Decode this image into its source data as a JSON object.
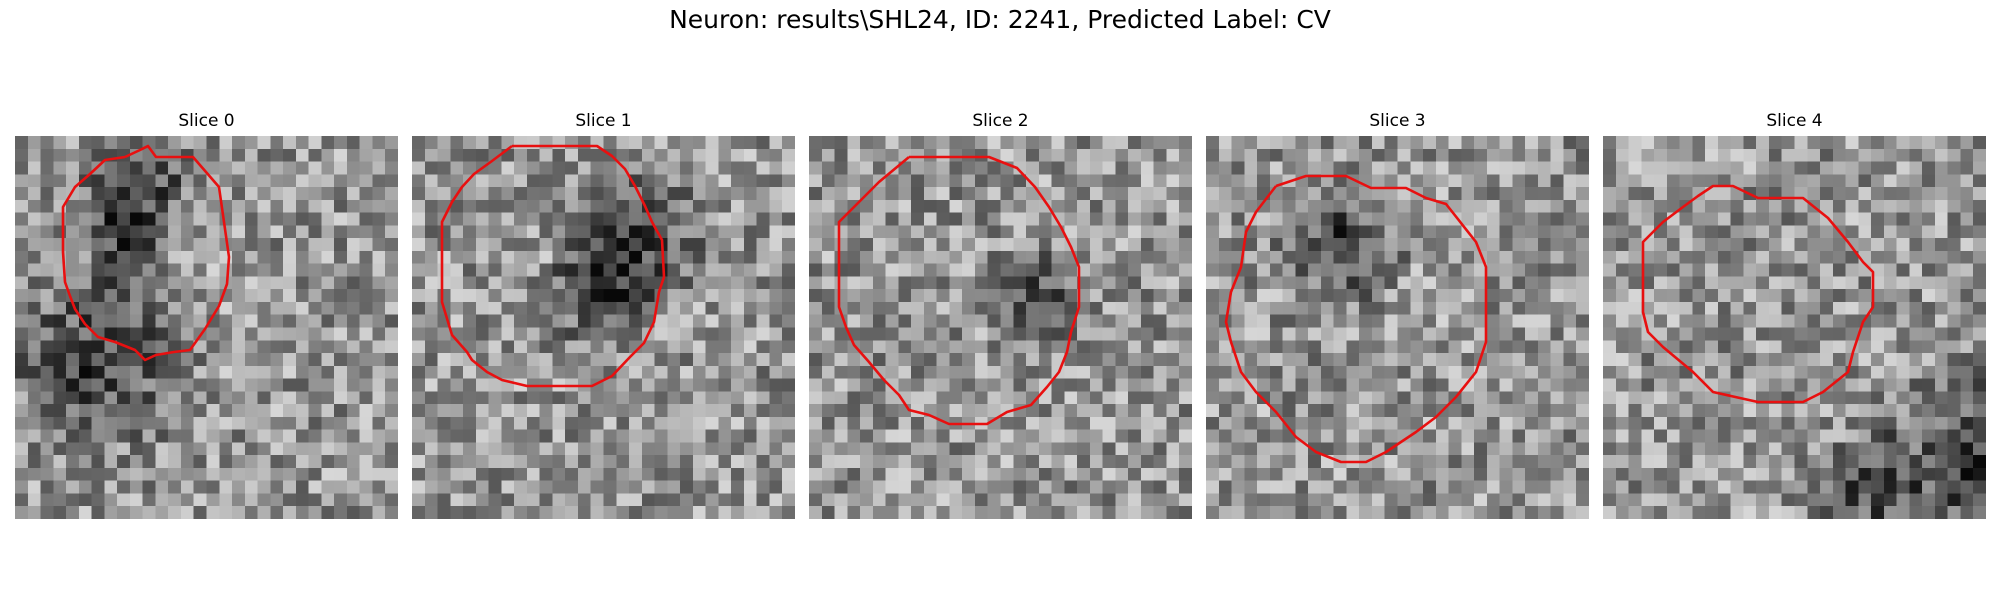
{
  "figure": {
    "title": "Neuron: results\\SHL24, ID: 2241, Predicted Label: CV"
  },
  "slices": [
    {
      "label": "Slice 0"
    },
    {
      "label": "Slice 1"
    },
    {
      "label": "Slice 2"
    },
    {
      "label": "Slice 3"
    },
    {
      "label": "Slice 4"
    }
  ],
  "colors": {
    "contour": "#e81010",
    "background": "#ffffff"
  }
}
